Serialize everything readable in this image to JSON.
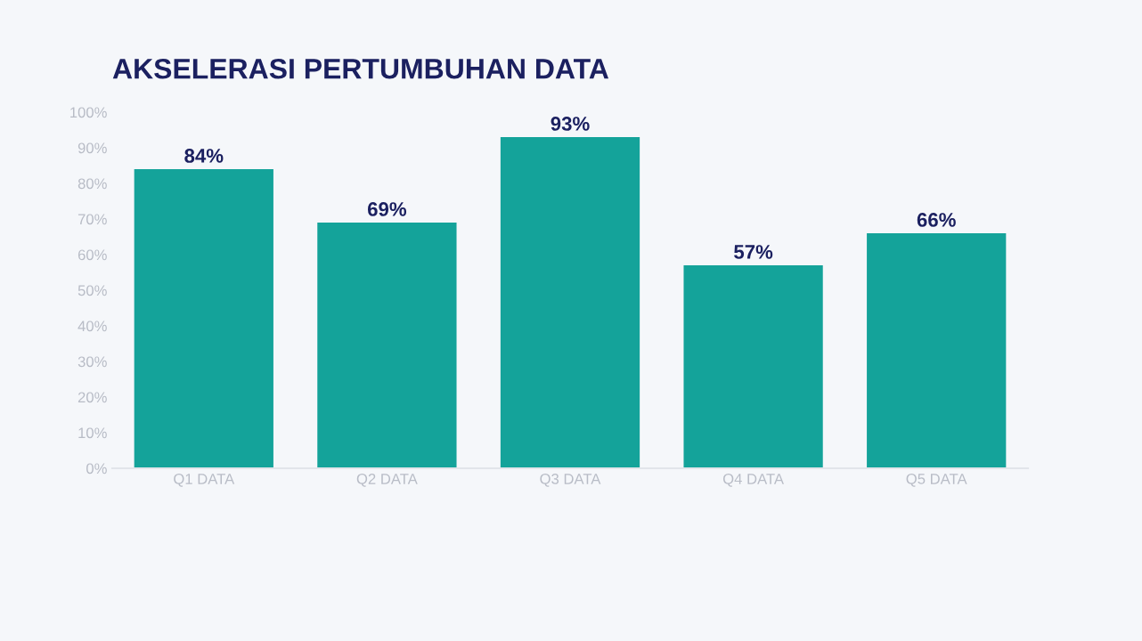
{
  "chart_data": {
    "type": "bar",
    "title": "AKSELERASI PERTUMBUHAN DATA",
    "categories": [
      "Q1 DATA",
      "Q2 DATA",
      "Q3 DATA",
      "Q4 DATA",
      "Q5 DATA"
    ],
    "values": [
      84,
      69,
      93,
      57,
      66
    ],
    "value_labels": [
      "84%",
      "69%",
      "93%",
      "57%",
      "66%"
    ],
    "color": "#14a39a",
    "ylim": [
      0,
      100
    ],
    "yticks": [
      {
        "value": 0,
        "label": "0%"
      },
      {
        "value": 10,
        "label": "10%"
      },
      {
        "value": 20,
        "label": "20%"
      },
      {
        "value": 30,
        "label": "30%"
      },
      {
        "value": 40,
        "label": "40%"
      },
      {
        "value": 50,
        "label": "50%"
      },
      {
        "value": 60,
        "label": "60%"
      },
      {
        "value": 70,
        "label": "70%"
      },
      {
        "value": 80,
        "label": "80%"
      },
      {
        "value": 90,
        "label": "90%"
      },
      {
        "value": 100,
        "label": "100%"
      }
    ],
    "grid": false
  }
}
